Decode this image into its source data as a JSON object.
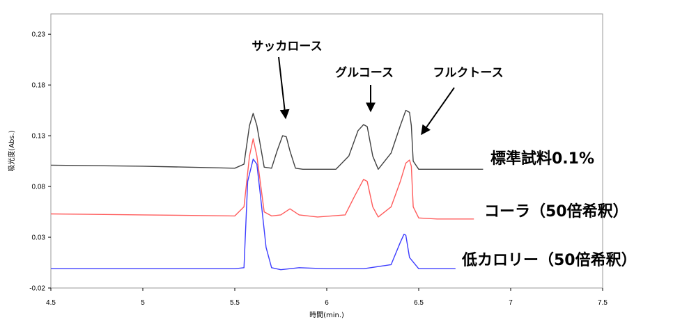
{
  "chart_data": {
    "type": "line",
    "title": "",
    "xlabel": "時間(min.)",
    "ylabel": "吸光度(Abs.)",
    "xlim": [
      4.5,
      7.5
    ],
    "ylim": [
      -0.02,
      0.25
    ],
    "xticks": [
      "4.5",
      "5",
      "5.5",
      "6",
      "6.5",
      "7",
      "7.5"
    ],
    "yticks": [
      "-0.02",
      "0.03",
      "0.08",
      "0.13",
      "0.18",
      "0.23"
    ],
    "grid": false,
    "legend": "none",
    "peak_annotations": [
      {
        "label": "サッカロース",
        "x": 5.78
      },
      {
        "label": "グルコース",
        "x": 6.21
      },
      {
        "label": "フルクトース",
        "x": 6.47
      }
    ],
    "series": [
      {
        "name": "標準試料0.1%",
        "color": "#404040",
        "x": [
          4.5,
          5.0,
          5.5,
          5.55,
          5.58,
          5.6,
          5.62,
          5.66,
          5.7,
          5.73,
          5.76,
          5.78,
          5.8,
          5.83,
          5.87,
          5.95,
          6.05,
          6.12,
          6.17,
          6.2,
          6.22,
          6.25,
          6.28,
          6.35,
          6.4,
          6.43,
          6.45,
          6.46,
          6.47,
          6.5,
          6.6,
          6.7,
          6.85
        ],
        "y": [
          0.101,
          0.1,
          0.098,
          0.102,
          0.14,
          0.152,
          0.14,
          0.099,
          0.098,
          0.115,
          0.13,
          0.129,
          0.115,
          0.098,
          0.097,
          0.097,
          0.097,
          0.11,
          0.135,
          0.141,
          0.139,
          0.11,
          0.097,
          0.113,
          0.14,
          0.155,
          0.153,
          0.14,
          0.105,
          0.097,
          0.097,
          0.097,
          0.097
        ]
      },
      {
        "name": "コーラ（50倍希釈）",
        "color": "#ff5b5b",
        "x": [
          4.5,
          5.0,
          5.5,
          5.55,
          5.58,
          5.6,
          5.62,
          5.66,
          5.7,
          5.75,
          5.8,
          5.85,
          5.95,
          6.1,
          6.15,
          6.2,
          6.22,
          6.25,
          6.28,
          6.35,
          6.4,
          6.43,
          6.45,
          6.46,
          6.47,
          6.5,
          6.6,
          6.8
        ],
        "y": [
          0.053,
          0.052,
          0.051,
          0.06,
          0.11,
          0.127,
          0.11,
          0.055,
          0.051,
          0.052,
          0.058,
          0.052,
          0.05,
          0.052,
          0.07,
          0.087,
          0.085,
          0.06,
          0.05,
          0.06,
          0.085,
          0.103,
          0.106,
          0.1,
          0.06,
          0.049,
          0.048,
          0.048
        ]
      },
      {
        "name": "低カロリー（50倍希釈）",
        "color": "#3d3dff",
        "x": [
          4.5,
          5.0,
          5.5,
          5.55,
          5.57,
          5.6,
          5.62,
          5.64,
          5.67,
          5.7,
          5.75,
          5.85,
          6.0,
          6.2,
          6.35,
          6.4,
          6.42,
          6.43,
          6.45,
          6.5,
          6.6,
          6.7
        ],
        "y": [
          -0.001,
          -0.001,
          -0.001,
          0.0,
          0.085,
          0.107,
          0.102,
          0.07,
          0.02,
          0.0,
          -0.002,
          0.0,
          -0.001,
          -0.001,
          0.003,
          0.025,
          0.033,
          0.032,
          0.01,
          -0.001,
          -0.001,
          -0.001
        ]
      }
    ]
  }
}
